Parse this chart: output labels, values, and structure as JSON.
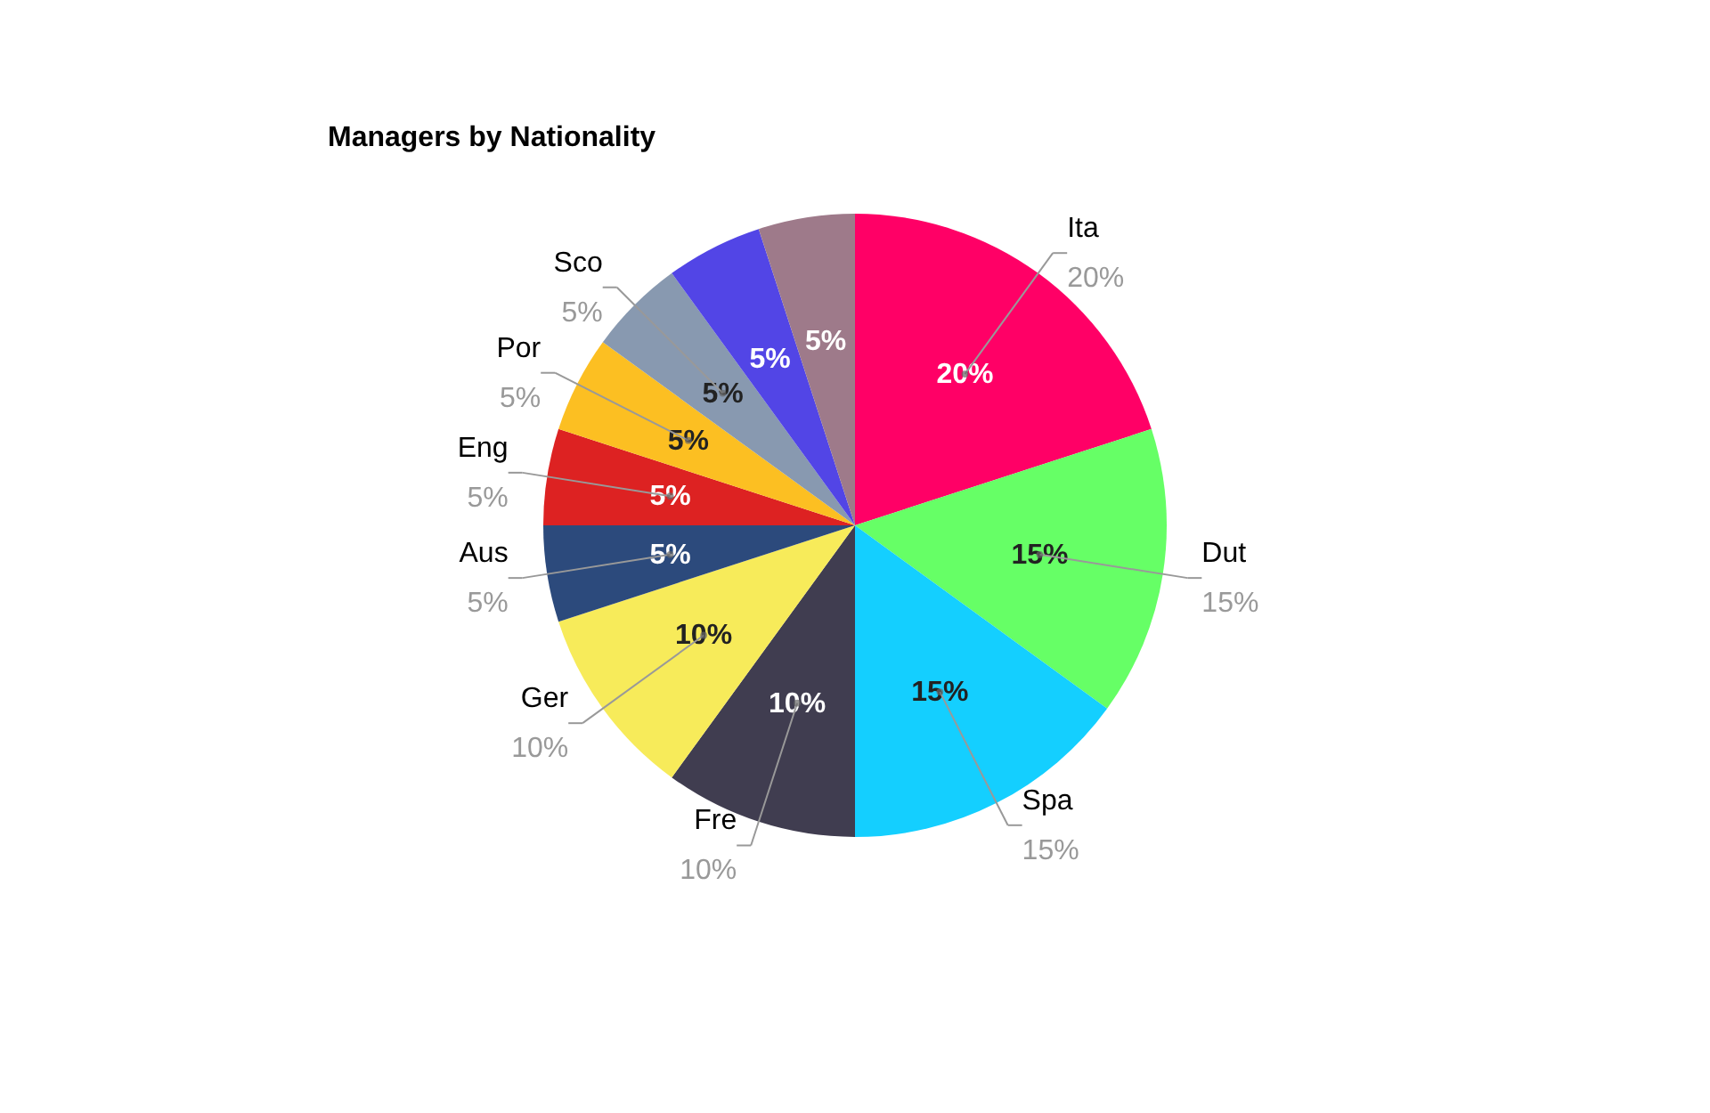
{
  "chart_data": {
    "type": "pie",
    "title": "Managers by Nationality",
    "categories": [
      "Ita",
      "Dut",
      "Spa",
      "Fre",
      "Ger",
      "Aus",
      "Eng",
      "Por",
      "Sco",
      null,
      null
    ],
    "values": [
      20,
      15,
      15,
      10,
      10,
      5,
      5,
      5,
      5,
      5,
      5
    ],
    "value_labels": [
      "20%",
      "15%",
      "15%",
      "10%",
      "10%",
      "5%",
      "5%",
      "5%",
      "5%",
      "5%",
      "5%"
    ],
    "colors": [
      "#ff0066",
      "#66ff66",
      "#14cfff",
      "#403d50",
      "#f7eb5a",
      "#2c4a7c",
      "#dd2222",
      "#fcbf22",
      "#8899b0",
      "#5245e6",
      "#9e7a8a"
    ],
    "legend": false
  }
}
